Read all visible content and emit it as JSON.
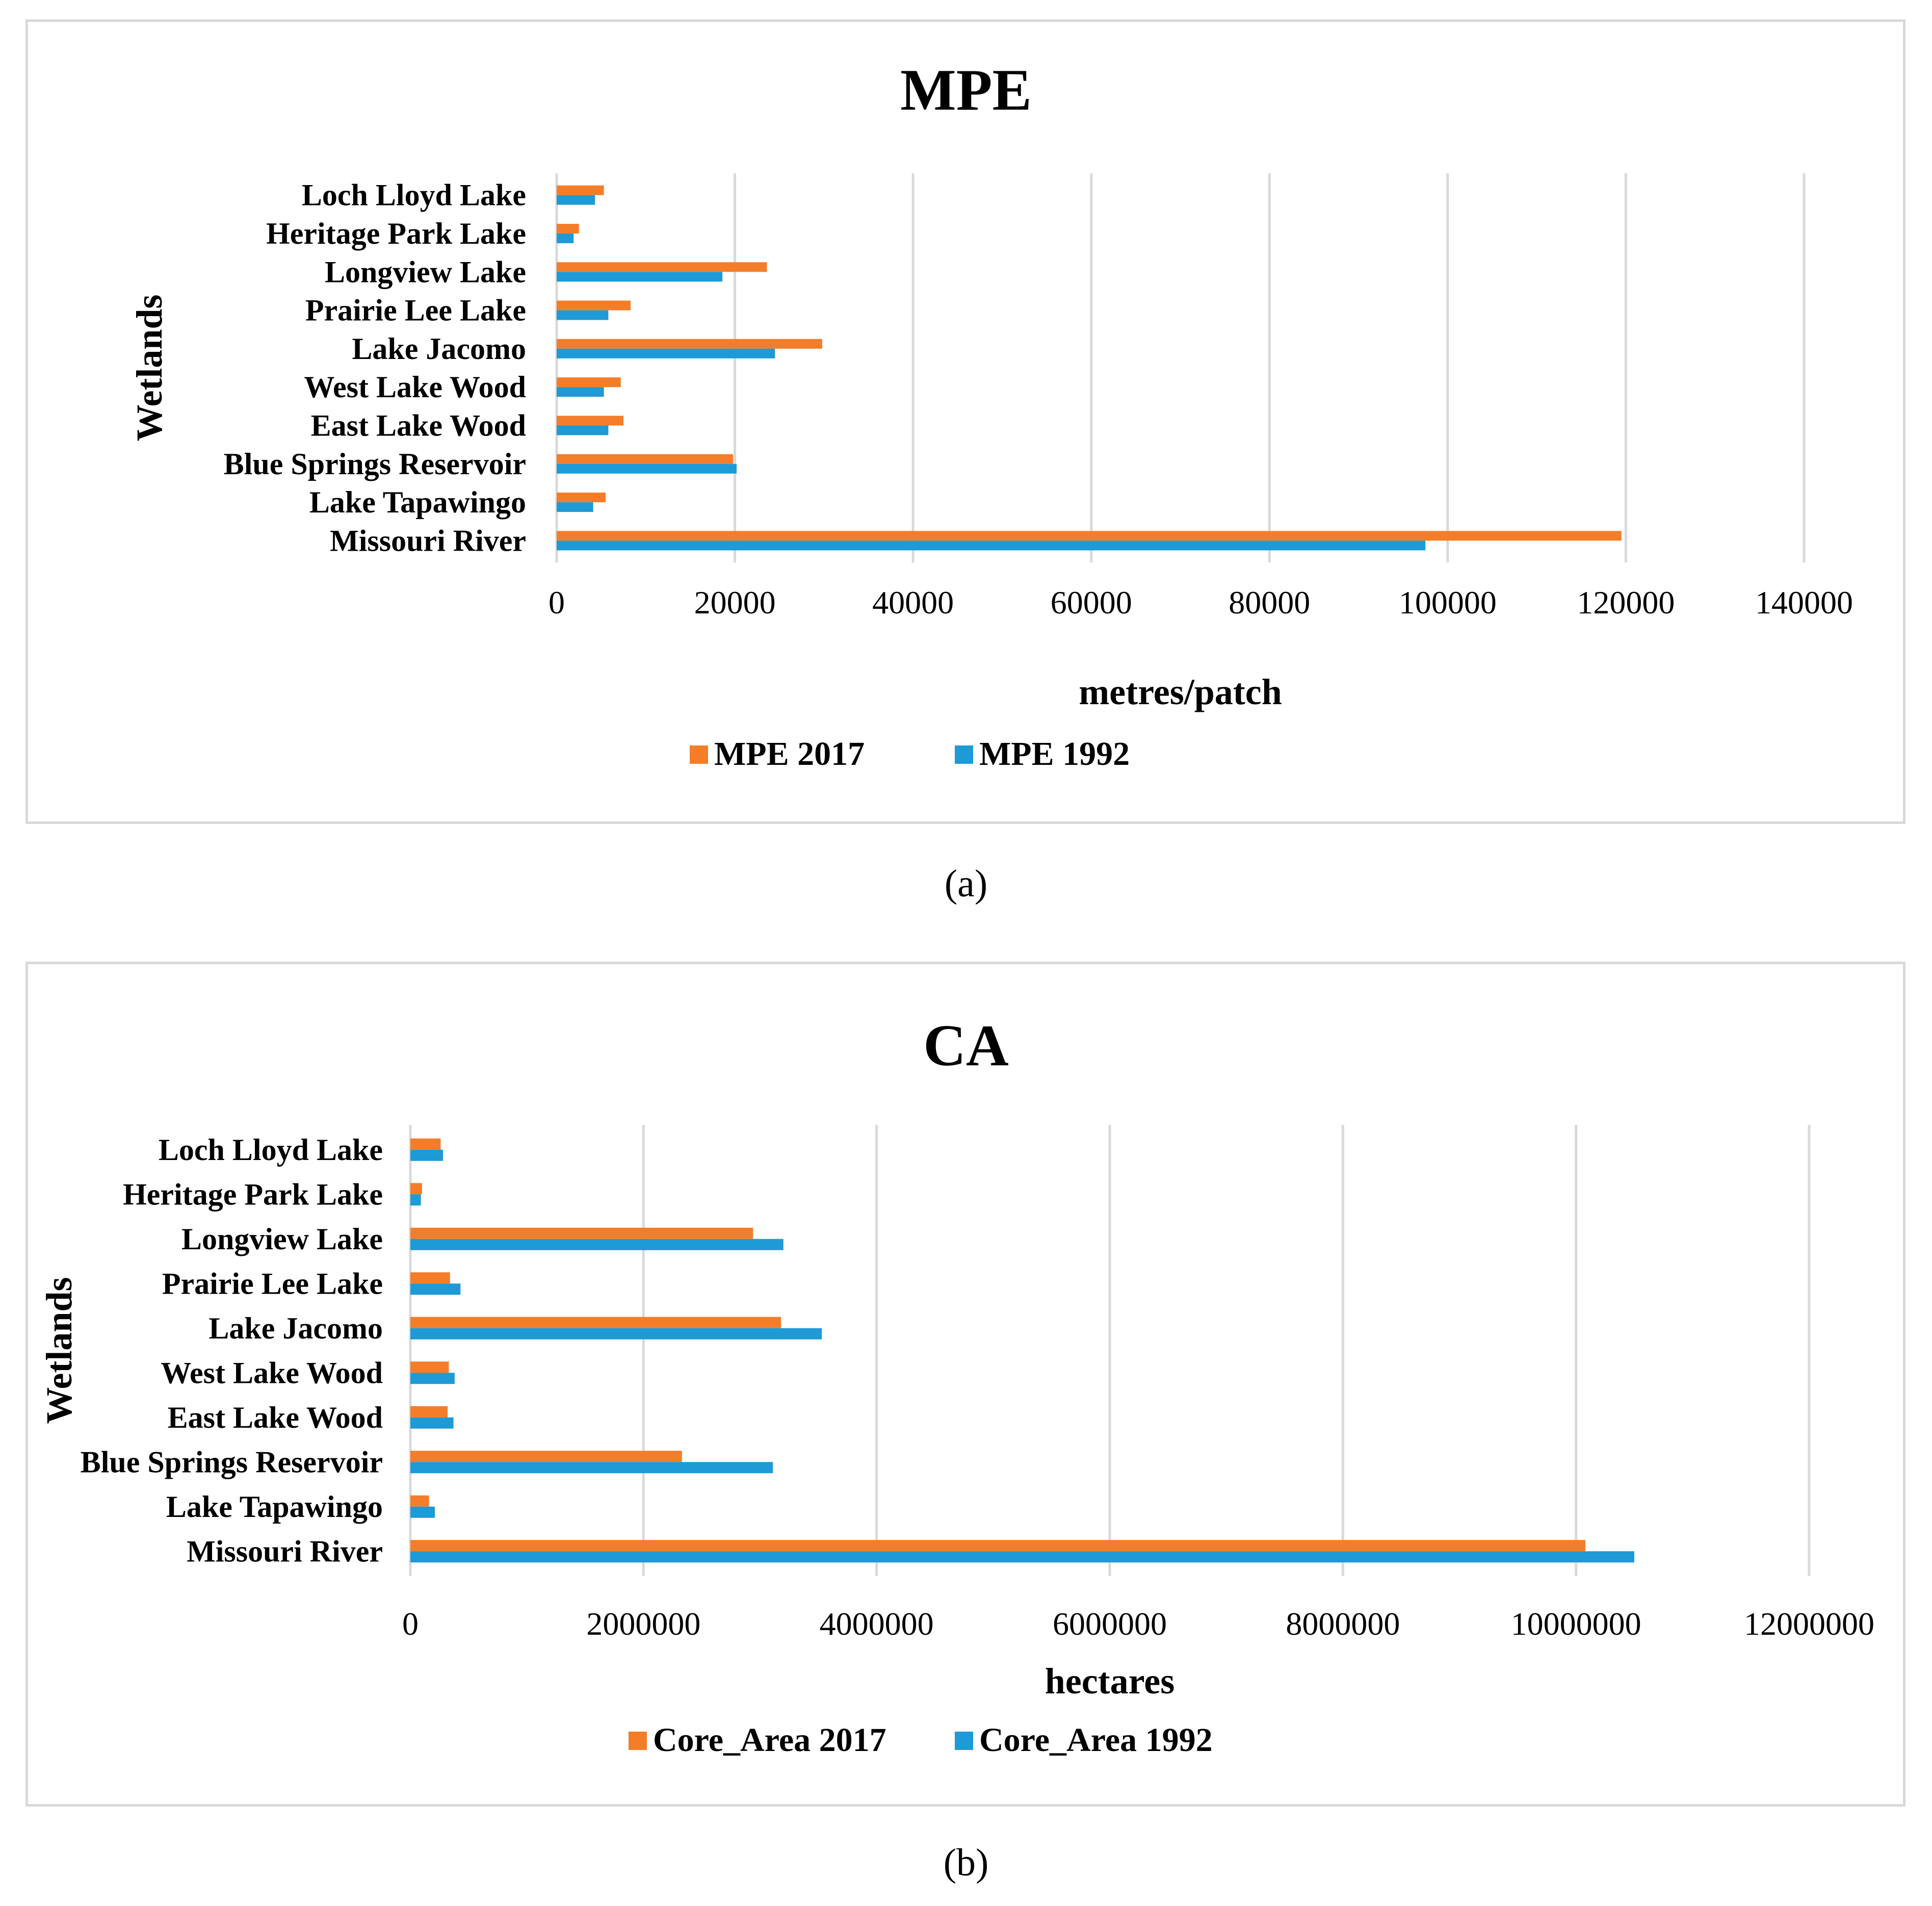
{
  "chart_data": [
    {
      "type": "bar",
      "orientation": "horizontal",
      "title": "MPE",
      "categories": [
        "Missouri River",
        "Lake Tapawingo",
        "Blue Springs Reservoir",
        "East Lake Wood",
        "West Lake Wood",
        "Lake Jacomo",
        "Prairie Lee Lake",
        "Longview Lake",
        "Heritage Park Lake",
        "Loch Lloyd Lake"
      ],
      "series": [
        {
          "name": "MPE 2017",
          "color": "#f47d2a",
          "values": [
            119500,
            5500,
            19800,
            7500,
            7200,
            29800,
            8300,
            23600,
            2500,
            5300
          ]
        },
        {
          "name": "MPE 1992",
          "color": "#1e9ad6",
          "values": [
            97500,
            4100,
            20200,
            5800,
            5300,
            24500,
            5800,
            18600,
            1900,
            4300
          ]
        }
      ],
      "xlabel": "metres/patch",
      "ylabel": "Wetlands",
      "xlim": [
        0,
        140000
      ],
      "ticks": [
        "0",
        "20000",
        "40000",
        "60000",
        "80000",
        "100000",
        "120000",
        "140000"
      ],
      "grid": true,
      "legend_position": "bottom"
    },
    {
      "type": "bar",
      "orientation": "horizontal",
      "title": "CA",
      "categories": [
        "Missouri River",
        "Lake Tapawingo",
        "Blue Springs Reservoir",
        "East Lake Wood",
        "West Lake Wood",
        "Lake Jacomo",
        "Prairie Lee Lake",
        "Longview Lake",
        "Heritage Park Lake",
        "Loch Lloyd Lake"
      ],
      "series": [
        {
          "name": "Core_Area 2017",
          "color": "#f47d2a",
          "values": [
            10080000,
            160000,
            2330000,
            320000,
            330000,
            3180000,
            340000,
            2940000,
            100000,
            260000
          ]
        },
        {
          "name": "Core_Area 1992",
          "color": "#1e9ad6",
          "values": [
            10500000,
            210000,
            3110000,
            370000,
            380000,
            3530000,
            430000,
            3200000,
            90000,
            280000
          ]
        }
      ],
      "xlabel": "hectares",
      "ylabel": "Wetlands",
      "xlim": [
        0,
        12000000
      ],
      "ticks": [
        "0",
        "2000000",
        "4000000",
        "6000000",
        "8000000",
        "10000000",
        "12000000"
      ],
      "grid": true,
      "legend_position": "bottom"
    }
  ],
  "captions": {
    "a": "(a)",
    "b": "(b)"
  }
}
